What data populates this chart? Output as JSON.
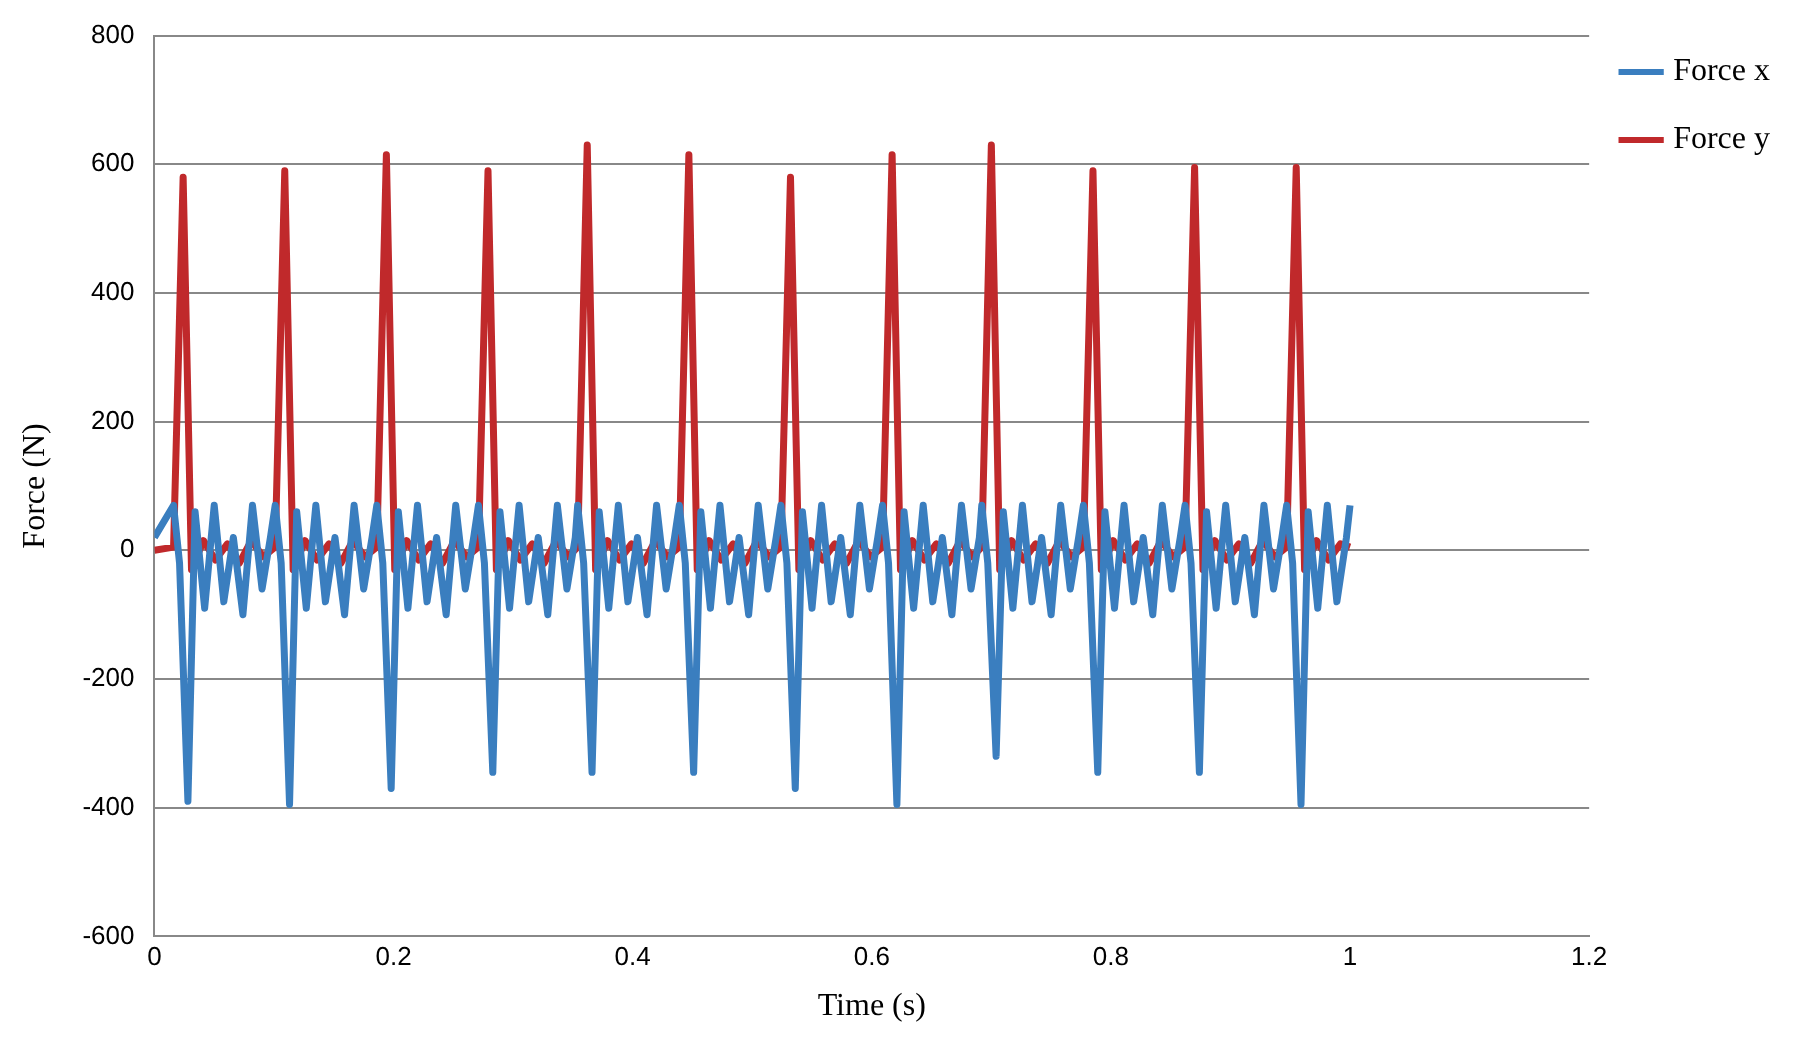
{
  "chart_data": {
    "type": "line",
    "xlabel": "Time (s)",
    "ylabel": "Force (N)",
    "xlim": [
      0,
      1.2
    ],
    "xticks": [
      0,
      0.2,
      0.4,
      0.6,
      0.8,
      1,
      1.2
    ],
    "ylim": [
      -600,
      800
    ],
    "yticks": [
      -600,
      -400,
      -200,
      0,
      200,
      400,
      600,
      800
    ],
    "grid": "y",
    "legend": "top right",
    "marker": "none",
    "line_style": "solid",
    "series": [
      {
        "name": "Force x",
        "color": "#3a7ebf",
        "x": [
          0,
          0.016,
          0.021,
          0.028,
          0.034,
          0.042,
          0.05,
          0.058,
          0.066,
          0.074,
          0.082,
          0.09,
          0.097,
          0.101,
          0.106,
          0.113,
          0.119,
          0.127,
          0.135,
          0.143,
          0.151,
          0.159,
          0.167,
          0.175,
          0.182,
          0.186,
          0.191,
          0.198,
          0.204,
          0.212,
          0.22,
          0.228,
          0.236,
          0.244,
          0.252,
          0.26,
          0.267,
          0.271,
          0.276,
          0.283,
          0.289,
          0.297,
          0.305,
          0.313,
          0.321,
          0.329,
          0.337,
          0.345,
          0.352,
          0.354,
          0.359,
          0.366,
          0.372,
          0.38,
          0.388,
          0.396,
          0.404,
          0.412,
          0.42,
          0.428,
          0.435,
          0.439,
          0.444,
          0.451,
          0.457,
          0.465,
          0.473,
          0.481,
          0.489,
          0.497,
          0.505,
          0.513,
          0.52,
          0.524,
          0.529,
          0.536,
          0.542,
          0.55,
          0.558,
          0.566,
          0.574,
          0.582,
          0.59,
          0.598,
          0.605,
          0.609,
          0.614,
          0.621,
          0.627,
          0.635,
          0.643,
          0.651,
          0.659,
          0.667,
          0.675,
          0.683,
          0.69,
          0.692,
          0.697,
          0.704,
          0.71,
          0.718,
          0.726,
          0.734,
          0.742,
          0.75,
          0.758,
          0.766,
          0.773,
          0.777,
          0.782,
          0.789,
          0.795,
          0.803,
          0.811,
          0.819,
          0.827,
          0.835,
          0.843,
          0.851,
          0.858,
          0.862,
          0.867,
          0.874,
          0.88,
          0.888,
          0.896,
          0.904,
          0.912,
          0.92,
          0.928,
          0.936,
          0.943,
          0.947,
          0.952,
          0.959,
          0.965,
          0.973,
          0.981,
          0.989,
          0.997,
          1.0
        ],
        "values": [
          20,
          70,
          -20,
          -390,
          60,
          -90,
          70,
          -80,
          20,
          -100,
          70,
          -60,
          20,
          70,
          -20,
          -395,
          60,
          -90,
          70,
          -80,
          20,
          -100,
          70,
          -60,
          20,
          70,
          -20,
          -370,
          60,
          -90,
          70,
          -80,
          20,
          -100,
          70,
          -60,
          20,
          70,
          -20,
          -345,
          60,
          -90,
          70,
          -80,
          20,
          -100,
          70,
          -60,
          20,
          70,
          -20,
          -345,
          60,
          -90,
          70,
          -80,
          20,
          -100,
          70,
          -60,
          20,
          70,
          -20,
          -345,
          60,
          -90,
          70,
          -80,
          20,
          -100,
          70,
          -60,
          20,
          70,
          -20,
          -370,
          60,
          -90,
          70,
          -80,
          20,
          -100,
          70,
          -60,
          20,
          70,
          -20,
          -395,
          60,
          -90,
          70,
          -80,
          20,
          -100,
          70,
          -60,
          20,
          70,
          -20,
          -320,
          60,
          -90,
          70,
          -80,
          20,
          -100,
          70,
          -60,
          20,
          70,
          -20,
          -345,
          60,
          -90,
          70,
          -80,
          20,
          -100,
          70,
          -60,
          20,
          70,
          -20,
          -345,
          60,
          -90,
          70,
          -80,
          20,
          -100,
          70,
          -60,
          20,
          70,
          -20,
          -395,
          60,
          -90,
          70,
          -80,
          20,
          70
        ]
      },
      {
        "name": "Force y",
        "color": "#c0292b",
        "x": [
          0,
          0.016,
          0.024,
          0.031,
          0.041,
          0.051,
          0.061,
          0.071,
          0.081,
          0.091,
          0.101,
          0.109,
          0.116,
          0.126,
          0.136,
          0.146,
          0.156,
          0.166,
          0.176,
          0.186,
          0.194,
          0.201,
          0.211,
          0.221,
          0.231,
          0.241,
          0.251,
          0.261,
          0.271,
          0.279,
          0.286,
          0.296,
          0.306,
          0.316,
          0.326,
          0.336,
          0.346,
          0.354,
          0.362,
          0.369,
          0.379,
          0.389,
          0.399,
          0.409,
          0.419,
          0.429,
          0.439,
          0.447,
          0.454,
          0.464,
          0.474,
          0.484,
          0.494,
          0.504,
          0.514,
          0.524,
          0.532,
          0.539,
          0.549,
          0.559,
          0.569,
          0.579,
          0.589,
          0.599,
          0.609,
          0.617,
          0.624,
          0.634,
          0.644,
          0.654,
          0.664,
          0.674,
          0.684,
          0.692,
          0.7,
          0.707,
          0.717,
          0.727,
          0.737,
          0.747,
          0.757,
          0.767,
          0.777,
          0.785,
          0.792,
          0.802,
          0.812,
          0.822,
          0.832,
          0.842,
          0.852,
          0.862,
          0.87,
          0.877,
          0.887,
          0.897,
          0.907,
          0.917,
          0.927,
          0.937,
          0.947,
          0.955,
          0.962,
          0.972,
          0.982,
          0.992,
          1.0
        ],
        "values": [
          0,
          5,
          580,
          -30,
          15,
          -15,
          10,
          -20,
          15,
          -10,
          5,
          590,
          -30,
          15,
          -15,
          10,
          -20,
          15,
          -10,
          5,
          615,
          -30,
          15,
          -15,
          10,
          -20,
          15,
          -10,
          5,
          590,
          -30,
          15,
          -15,
          10,
          -20,
          15,
          -10,
          5,
          630,
          -30,
          15,
          -15,
          10,
          -20,
          15,
          -10,
          5,
          615,
          -30,
          15,
          -15,
          10,
          -20,
          15,
          -10,
          5,
          580,
          -30,
          15,
          -15,
          10,
          -20,
          15,
          -10,
          5,
          615,
          -30,
          15,
          -15,
          10,
          -20,
          15,
          -10,
          5,
          630,
          -30,
          15,
          -15,
          10,
          -20,
          15,
          -10,
          5,
          590,
          -30,
          15,
          -15,
          10,
          -20,
          15,
          -10,
          5,
          595,
          -30,
          15,
          -15,
          10,
          -20,
          15,
          -10,
          5,
          595,
          -30,
          15,
          -15,
          10,
          5
        ]
      }
    ]
  }
}
